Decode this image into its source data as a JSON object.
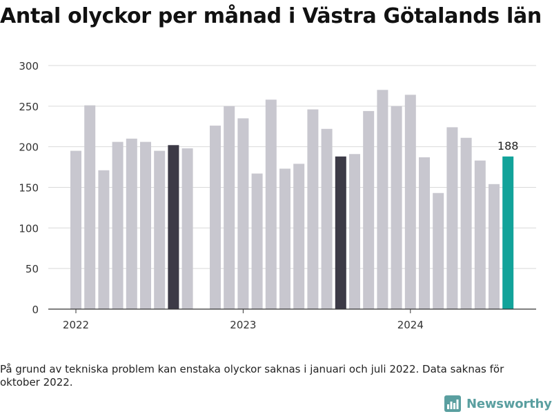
{
  "title": "Antal olyckor per månad i Västra Götalands län",
  "footnote": "På grund av tekniska problem kan enstaka olyckor saknas i januari och juli 2022. Data saknas för oktober 2022.",
  "brand": {
    "name": "Newsworthy",
    "icon": "newsworthy-chart-icon"
  },
  "colors": {
    "default": "#c8c7cf",
    "highlight": "#3c3a46",
    "latest": "#12a39a",
    "grid": "#d9d9d9",
    "axis": "#333333"
  },
  "chart_data": {
    "type": "bar",
    "title": "Antal olyckor per månad i Västra Götalands län",
    "xlabel": "",
    "ylabel": "",
    "ylim": [
      0,
      300
    ],
    "yticks": [
      0,
      50,
      100,
      150,
      200,
      250,
      300
    ],
    "xticks": [
      "2022",
      "2023",
      "2024"
    ],
    "grid": true,
    "legend": "none",
    "latest_label": "188",
    "categories": [
      "2022-01",
      "2022-02",
      "2022-03",
      "2022-04",
      "2022-05",
      "2022-06",
      "2022-07",
      "2022-08",
      "2022-09",
      "2022-10",
      "2022-11",
      "2022-12",
      "2023-01",
      "2023-02",
      "2023-03",
      "2023-04",
      "2023-05",
      "2023-06",
      "2023-07",
      "2023-08",
      "2023-09",
      "2023-10",
      "2023-11",
      "2023-12",
      "2024-01",
      "2024-02",
      "2024-03",
      "2024-04",
      "2024-05",
      "2024-06",
      "2024-07",
      "2024-08"
    ],
    "values": [
      195,
      251,
      171,
      206,
      210,
      206,
      195,
      202,
      198,
      null,
      226,
      250,
      235,
      167,
      258,
      173,
      179,
      246,
      222,
      188,
      191,
      244,
      270,
      250,
      264,
      187,
      143,
      224,
      211,
      183,
      154,
      188
    ],
    "highlight": [
      "2022-08",
      "2023-08"
    ],
    "latest": "2024-08"
  }
}
